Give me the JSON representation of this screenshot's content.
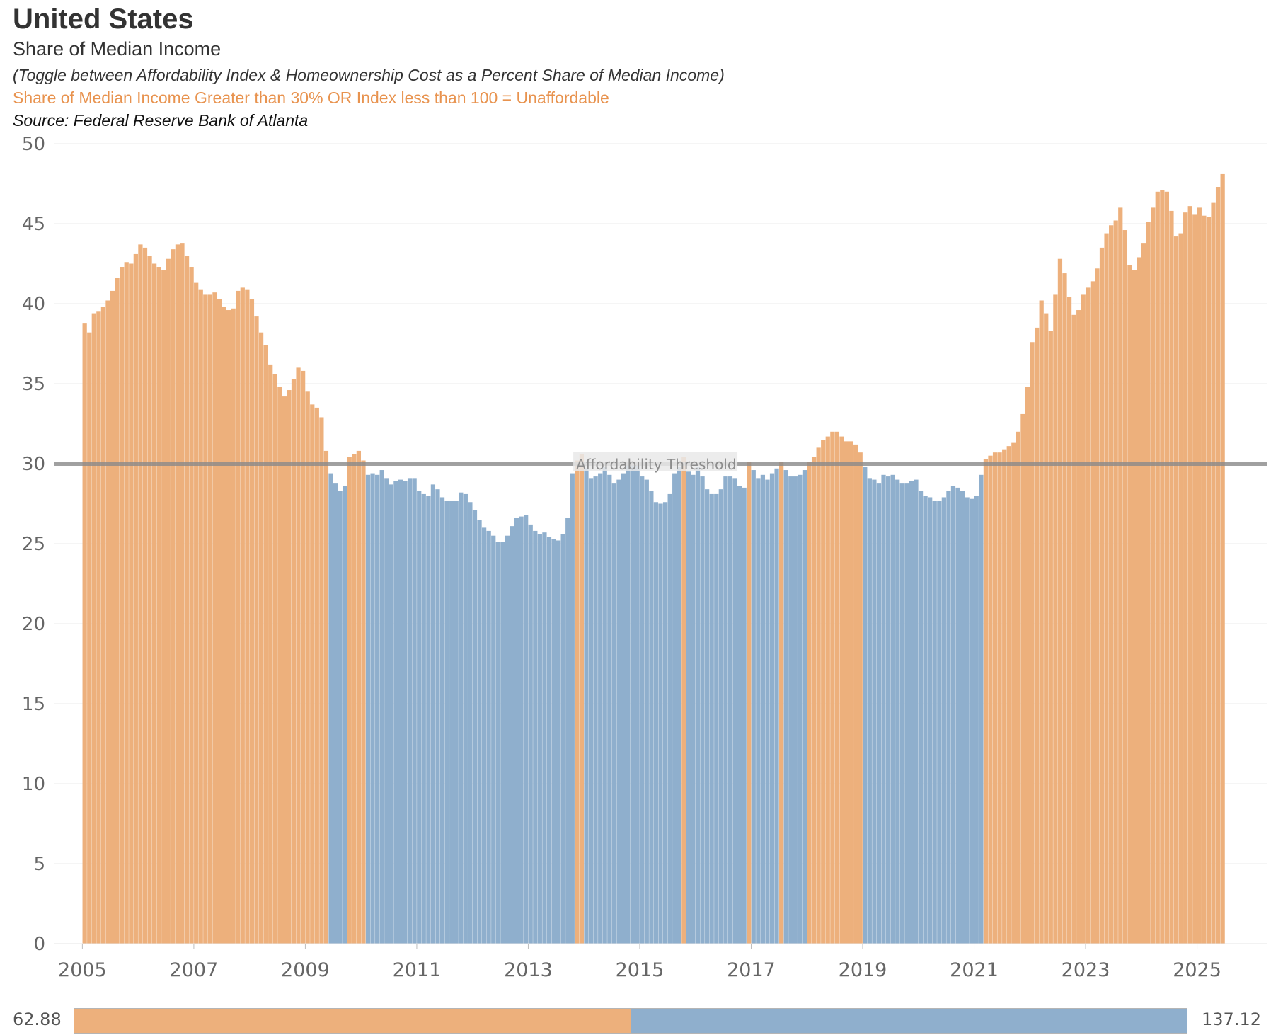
{
  "header": {
    "title": "United States",
    "subtitle": "Share of Median Income",
    "toggle_note": "(Toggle between Affordability Index & Homeownership Cost as a Percent Share of Median Income)",
    "rule_note": "Share of Median Income Greater than 30% OR Index less than 100  = Unaffordable",
    "source_note": "Source: Federal Reserve Bank of Atlanta"
  },
  "colors": {
    "unaffordable": "#EDB07C",
    "affordable": "#8FAFCD",
    "threshold_line": "#8A8A8A",
    "rule_note_text": "#E8934F"
  },
  "legend": {
    "min_label": "62.88",
    "max_label": "137.12",
    "split_fraction": 0.5
  },
  "chart_data": {
    "type": "bar",
    "title": "",
    "xlabel": "",
    "ylabel": "",
    "ylim": [
      0,
      50
    ],
    "yticks": [
      0,
      5,
      10,
      15,
      20,
      25,
      30,
      35,
      40,
      45,
      50
    ],
    "xticks": [
      "2005",
      "2007",
      "2009",
      "2011",
      "2013",
      "2015",
      "2017",
      "2019",
      "2021",
      "2023",
      "2025"
    ],
    "xlim": [
      "2004-07",
      "2026-04"
    ],
    "threshold": {
      "value": 30,
      "label": "Affordability Threshold"
    },
    "grid": true,
    "frequency": "monthly",
    "start": "2005-01",
    "values": [
      38.8,
      38.2,
      39.4,
      39.5,
      39.8,
      40.2,
      40.8,
      41.6,
      42.3,
      42.6,
      42.5,
      43.1,
      43.7,
      43.5,
      43.0,
      42.5,
      42.3,
      42.1,
      42.8,
      43.4,
      43.7,
      43.8,
      43.0,
      42.3,
      41.3,
      40.9,
      40.6,
      40.6,
      40.7,
      40.3,
      39.8,
      39.6,
      39.7,
      40.8,
      41.0,
      40.9,
      40.3,
      39.2,
      38.2,
      37.4,
      36.2,
      35.6,
      34.8,
      34.2,
      34.6,
      35.3,
      36.0,
      35.8,
      34.5,
      33.7,
      33.5,
      32.9,
      30.8,
      29.4,
      28.8,
      28.3,
      28.6,
      30.4,
      30.6,
      30.8,
      30.2,
      29.3,
      29.4,
      29.3,
      29.6,
      29.1,
      28.7,
      28.9,
      29.0,
      28.9,
      29.1,
      29.1,
      28.3,
      28.1,
      28.0,
      28.7,
      28.4,
      27.9,
      27.7,
      27.7,
      27.7,
      28.2,
      28.1,
      27.6,
      27.1,
      26.5,
      26.0,
      25.8,
      25.5,
      25.1,
      25.1,
      25.5,
      26.1,
      26.6,
      26.7,
      26.8,
      26.2,
      25.8,
      25.6,
      25.7,
      25.4,
      25.3,
      25.2,
      25.6,
      26.6,
      29.4,
      30.2,
      30.6,
      29.7,
      29.1,
      29.2,
      29.4,
      29.8,
      29.3,
      28.8,
      29.0,
      29.4,
      29.9,
      29.9,
      29.9,
      29.2,
      29.0,
      28.3,
      27.6,
      27.5,
      27.6,
      28.1,
      29.4,
      29.8,
      30.4,
      29.5,
      29.3,
      29.8,
      29.2,
      28.4,
      28.1,
      28.1,
      28.4,
      29.2,
      29.2,
      29.1,
      28.6,
      28.5,
      30.1,
      29.6,
      29.1,
      29.3,
      29.0,
      29.4,
      29.7,
      30.1,
      29.6,
      29.2,
      29.2,
      29.3,
      29.6,
      30.1,
      30.4,
      31.0,
      31.5,
      31.7,
      32.0,
      32.0,
      31.7,
      31.4,
      31.4,
      31.2,
      30.7,
      29.8,
      29.1,
      29.0,
      28.8,
      29.3,
      29.2,
      29.3,
      29.0,
      28.8,
      28.8,
      28.9,
      29.0,
      28.3,
      28.0,
      27.9,
      27.7,
      27.7,
      27.9,
      28.3,
      28.6,
      28.5,
      28.3,
      27.9,
      27.8,
      28.0,
      29.3,
      30.3,
      30.5,
      30.7,
      30.7,
      30.9,
      31.1,
      31.3,
      32.0,
      33.1,
      34.8,
      37.6,
      38.5,
      40.2,
      39.4,
      38.3,
      40.6,
      42.8,
      41.9,
      40.4,
      39.3,
      39.6,
      40.6,
      41.0,
      41.4,
      42.2,
      43.5,
      44.4,
      44.9,
      45.2,
      46.0,
      44.6,
      42.4,
      42.1,
      42.9,
      43.8,
      45.1,
      46.0,
      47.0,
      47.1,
      47.0,
      45.8,
      44.2,
      44.4,
      45.7,
      46.1,
      45.6,
      46.0,
      45.5,
      45.4,
      46.3,
      47.3,
      48.1
    ]
  }
}
